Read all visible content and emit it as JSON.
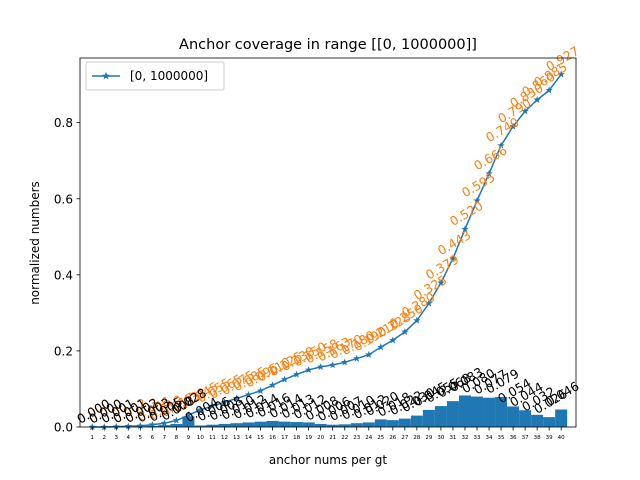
{
  "chart_data": {
    "type": "bar+line",
    "title": "Anchor coverage in range [[0, 1000000]]",
    "xlabel": "anchor nums per gt",
    "ylabel": "normalized numbers",
    "ylim": [
      0,
      0.97
    ],
    "yticks": [
      "0.0",
      "0.2",
      "0.4",
      "0.6",
      "0.8"
    ],
    "categories": [
      "1",
      "2",
      "3",
      "4",
      "5",
      "6",
      "7",
      "8",
      "9",
      "10",
      "11",
      "12",
      "13",
      "14",
      "15",
      "16",
      "17",
      "18",
      "19",
      "20",
      "21",
      "22",
      "23",
      "24",
      "25",
      "26",
      "27",
      "28",
      "29",
      "30",
      "31",
      "32",
      "33",
      "34",
      "35",
      "36",
      "37",
      "38",
      "39",
      "40"
    ],
    "legend": {
      "label": "[0, 1000000]",
      "position": "upper-left"
    },
    "series": [
      {
        "name": "[0, 1000000]",
        "kind": "line",
        "marker": "star",
        "color": "#1f77b4",
        "label_color": "#ff7f0e",
        "values": [
          0.0,
          0.0,
          0.001,
          0.002,
          0.003,
          0.006,
          0.01,
          0.017,
          0.031,
          0.045,
          0.055,
          0.065,
          0.075,
          0.085,
          0.095,
          0.11,
          0.125,
          0.138,
          0.15,
          0.158,
          0.163,
          0.17,
          0.18,
          0.19,
          0.21,
          0.228,
          0.25,
          0.28,
          0.325,
          0.379,
          0.443,
          0.52,
          0.595,
          0.666,
          0.74,
          0.79,
          0.83,
          0.86,
          0.885,
          0.927
        ],
        "labels": [
          "0.000",
          "0.000",
          "0.001",
          "0.002",
          "0.003",
          "0.006",
          "0.010",
          "0.017",
          "0.031",
          "0.045",
          "0.055",
          "0.065",
          "0.075",
          "0.085",
          "0.095",
          "0.110",
          "0.125",
          "0.138",
          "0.150",
          "0.158",
          "0.163",
          "0.170",
          "0.180",
          "0.190",
          "0.210",
          "0.228",
          "0.250",
          "0.280",
          "0.325",
          "0.379",
          "0.443",
          "0.520",
          "0.595",
          "0.666",
          "0.740",
          "0.790",
          "0.830",
          "0.860",
          "0.885",
          "0.927"
        ]
      },
      {
        "name": "",
        "kind": "bar",
        "color": "#1f77b4",
        "label_color": "#000000",
        "values": [
          0.0,
          0.0,
          0.001,
          0.001,
          0.002,
          0.003,
          0.005,
          0.008,
          0.028,
          0.004,
          0.006,
          0.008,
          0.01,
          0.012,
          0.014,
          0.016,
          0.014,
          0.013,
          0.012,
          0.008,
          0.006,
          0.007,
          0.01,
          0.012,
          0.02,
          0.018,
          0.022,
          0.03,
          0.045,
          0.055,
          0.068,
          0.083,
          0.08,
          0.077,
          0.079,
          0.054,
          0.044,
          0.032,
          0.026,
          0.046
        ],
        "labels": [
          "0.000",
          "0.000",
          "0.001",
          "0.001",
          "0.002",
          "0.003",
          "0.005",
          "0.008",
          "0.028",
          "0.004",
          "0.006",
          "0.008",
          "0.010",
          "0.012",
          "0.014",
          "0.016",
          "0.014",
          "0.013",
          "0.012",
          "0.008",
          "0.006",
          "0.007",
          "0.010",
          "0.012",
          "0.020",
          "0.018",
          "0.022",
          "0.030",
          "0.045",
          "0.055",
          "0.068",
          "0.083",
          "0.080",
          "0.077",
          "0.079",
          "0.054",
          "0.044",
          "0.032",
          "0.026",
          "0.046"
        ]
      }
    ]
  }
}
